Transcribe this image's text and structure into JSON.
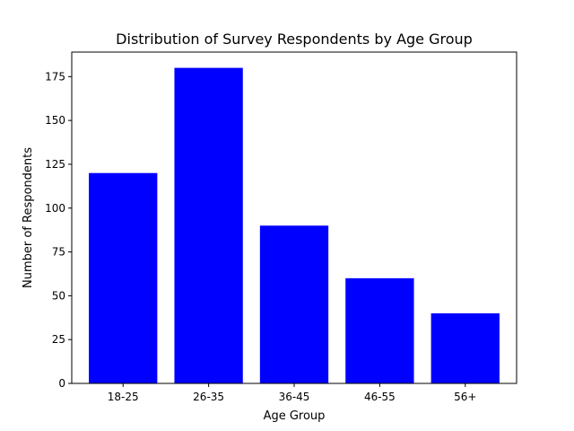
{
  "chart_data": {
    "type": "bar",
    "title": "Distribution of Survey Respondents by Age Group",
    "xlabel": "Age Group",
    "ylabel": "Number of Respondents",
    "categories": [
      "18-25",
      "26-35",
      "36-45",
      "46-55",
      "56+"
    ],
    "values": [
      120,
      180,
      90,
      60,
      40
    ],
    "ylim": [
      0,
      189
    ],
    "yticks": [
      0,
      25,
      50,
      75,
      100,
      125,
      150,
      175
    ],
    "bar_color": "#0000ff",
    "grid": false
  }
}
